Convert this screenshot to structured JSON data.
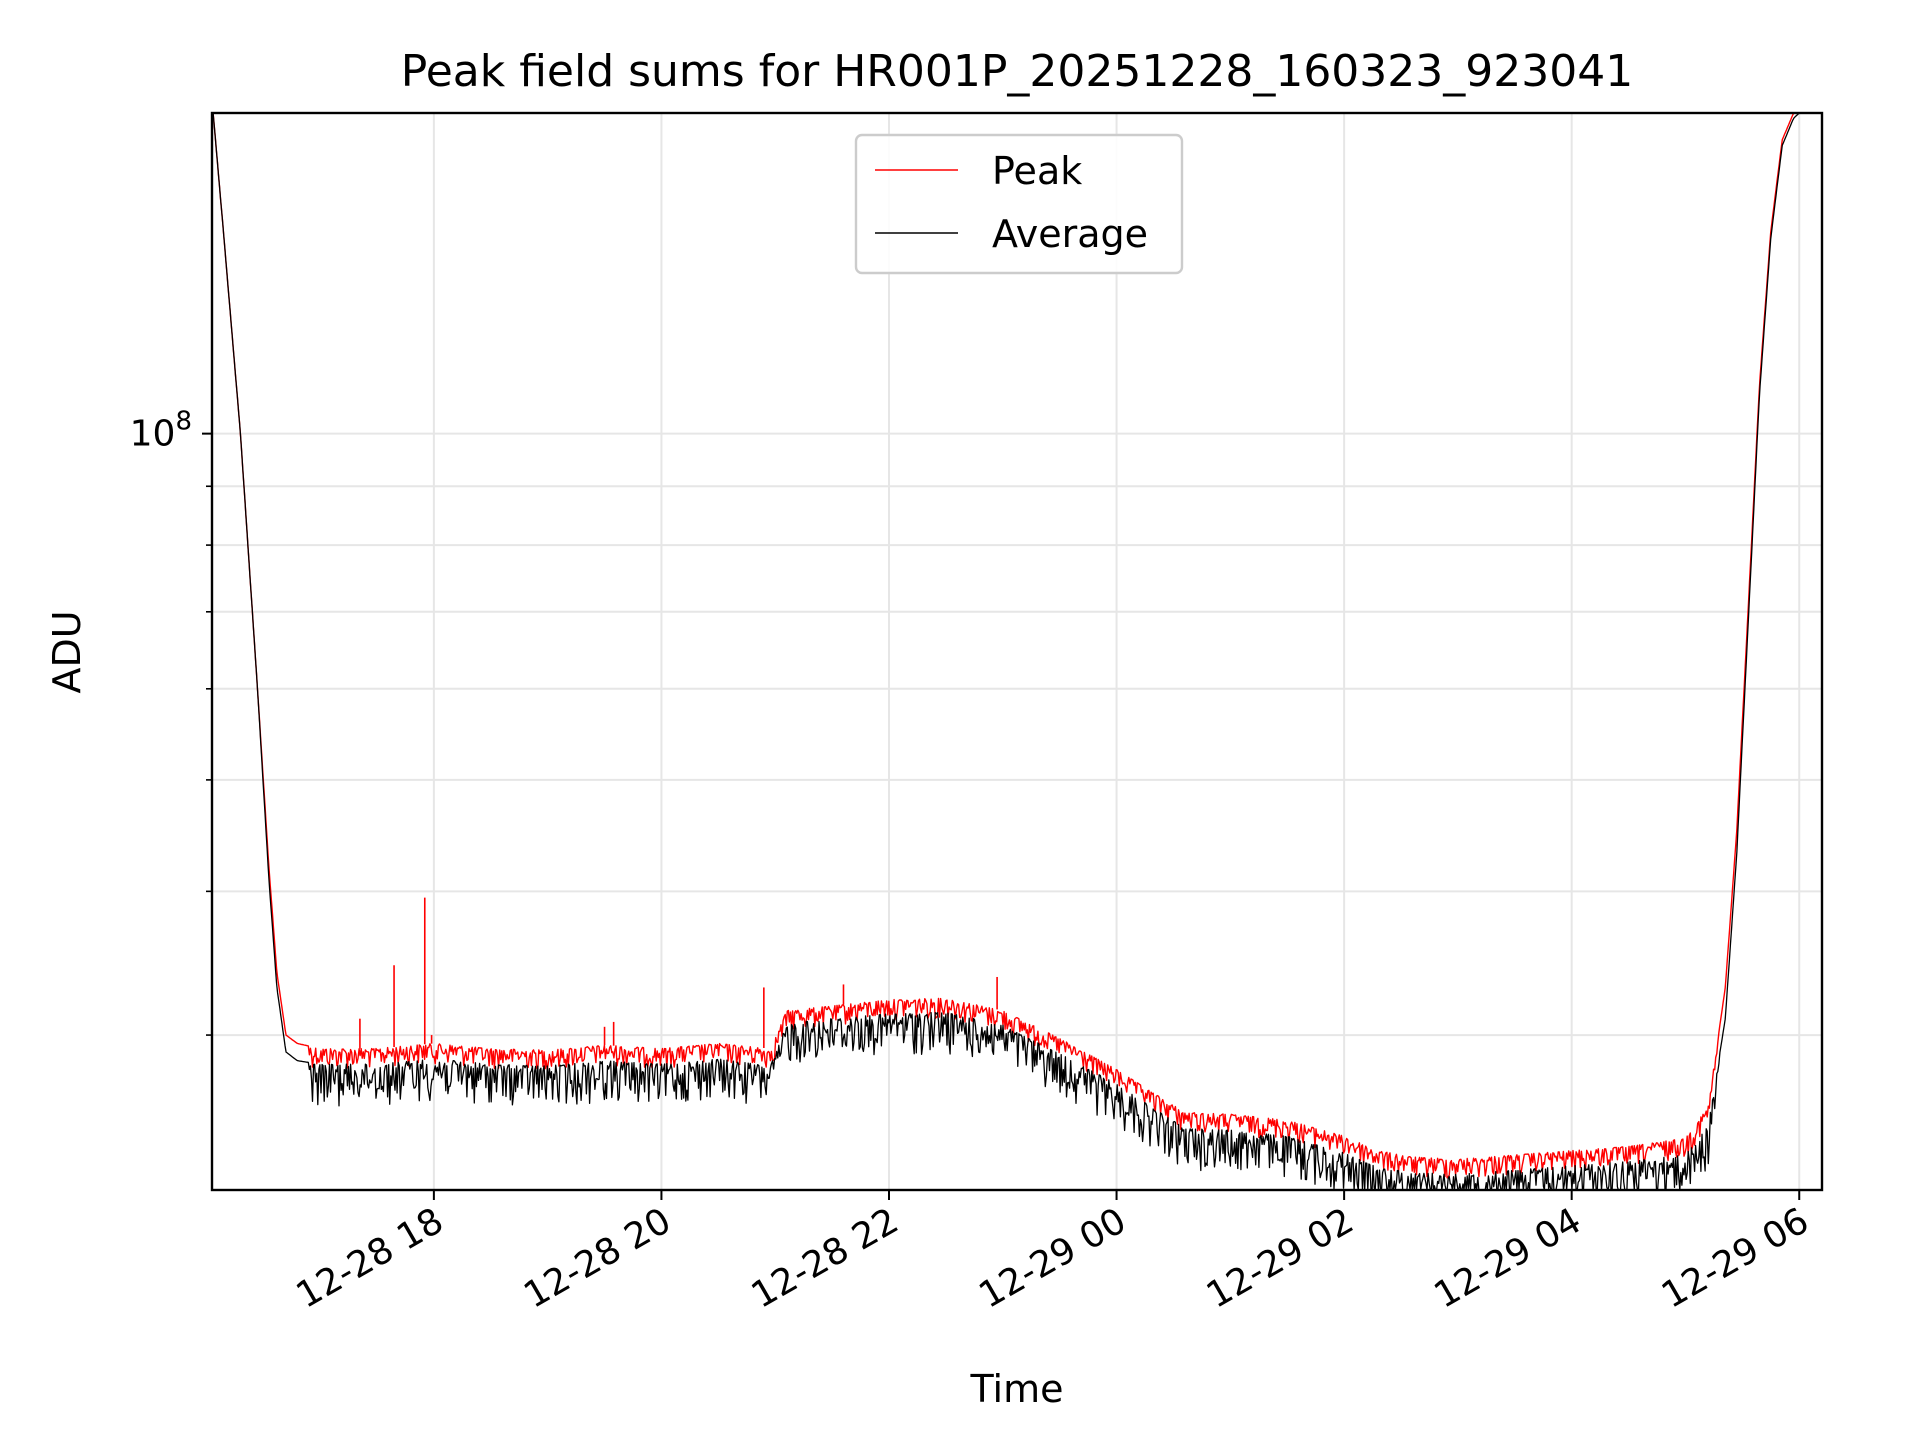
{
  "chart_data": {
    "type": "line",
    "title": "Peak field sums for HR001P_20251228_160323_923041",
    "xlabel": "Time",
    "ylabel": "ADU",
    "yscale": "log",
    "ylim": [
      22000000,
      190000000
    ],
    "xlim_hours": [
      16.05,
      30.2
    ],
    "grid": true,
    "legend_position": "upper-center",
    "x_ticks": [
      {
        "hours": 18,
        "label": "12-28 18"
      },
      {
        "hours": 20,
        "label": "12-28 20"
      },
      {
        "hours": 22,
        "label": "12-28 22"
      },
      {
        "hours": 24,
        "label": "12-29 00"
      },
      {
        "hours": 26,
        "label": "12-29 02"
      },
      {
        "hours": 28,
        "label": "12-29 04"
      },
      {
        "hours": 30,
        "label": "12-29 06"
      }
    ],
    "y_major_ticks": [
      {
        "value": 100000000,
        "base": "10",
        "exp": "8"
      }
    ],
    "y_minor_ticks": [
      30000000,
      40000000,
      50000000,
      60000000,
      70000000,
      80000000,
      90000000,
      200000000
    ],
    "series": [
      {
        "name": "Peak",
        "color": "#ff0000",
        "x_hours": [
          16.06,
          16.15,
          16.3,
          16.45,
          16.55,
          16.62,
          16.7,
          16.8,
          17.0,
          17.5,
          18.0,
          18.5,
          19.0,
          19.5,
          20.0,
          20.5,
          20.95,
          21.0,
          21.1,
          21.5,
          22.0,
          22.5,
          23.0,
          23.5,
          24.0,
          24.3,
          24.6,
          25.0,
          25.5,
          26.0,
          26.3,
          26.6,
          27.0,
          27.5,
          28.0,
          28.5,
          29.0,
          29.2,
          29.35,
          29.45,
          29.55,
          29.65,
          29.75,
          29.85,
          29.95,
          30.0
        ],
        "values": [
          190000000,
          150000000,
          100000000,
          60000000,
          42000000,
          34000000,
          30000000,
          29500000,
          29200000,
          29200000,
          29500000,
          29200000,
          29100000,
          29400000,
          29200000,
          29500000,
          29200000,
          29800000,
          31500000,
          31800000,
          32200000,
          32300000,
          31500000,
          29800000,
          28000000,
          26800000,
          25700000,
          25600000,
          25300000,
          24500000,
          23800000,
          23500000,
          23400000,
          23600000,
          23800000,
          24000000,
          24400000,
          26000000,
          33000000,
          45000000,
          70000000,
          110000000,
          150000000,
          180000000,
          190000000,
          192000000
        ]
      },
      {
        "name": "Average",
        "color": "#000000",
        "x_hours": [
          16.06,
          16.15,
          16.3,
          16.45,
          16.55,
          16.62,
          16.7,
          16.8,
          17.0,
          17.5,
          18.0,
          18.5,
          19.0,
          19.5,
          20.0,
          20.5,
          20.95,
          21.0,
          21.1,
          21.5,
          22.0,
          22.5,
          23.0,
          23.5,
          24.0,
          24.3,
          24.6,
          25.0,
          25.5,
          26.0,
          26.3,
          26.6,
          27.0,
          27.5,
          28.0,
          28.5,
          29.0,
          29.2,
          29.35,
          29.45,
          29.55,
          29.65,
          29.75,
          29.85,
          29.95,
          30.0
        ],
        "values": [
          190000000,
          150000000,
          100000000,
          60000000,
          41000000,
          33000000,
          29000000,
          28500000,
          28300000,
          28300000,
          28600000,
          28300000,
          28200000,
          28500000,
          28300000,
          28600000,
          28200000,
          28800000,
          30700000,
          31000000,
          31300000,
          31400000,
          30600000,
          28900000,
          27200000,
          26000000,
          24900000,
          24800000,
          24500000,
          23700000,
          23000000,
          22800000,
          22700000,
          22900000,
          23100000,
          23300000,
          23600000,
          25000000,
          31000000,
          43000000,
          68000000,
          108000000,
          148000000,
          178000000,
          188000000,
          190000000
        ]
      }
    ],
    "spikes": {
      "color": "#ff0000",
      "x_hours": [
        17.35,
        17.65,
        17.92,
        17.98,
        19.5,
        19.58,
        20.9,
        21.6,
        22.95
      ],
      "values": [
        31000000,
        34500000,
        39500000,
        30000000,
        30500000,
        30800000,
        33000000,
        33200000,
        33700000
      ]
    }
  }
}
